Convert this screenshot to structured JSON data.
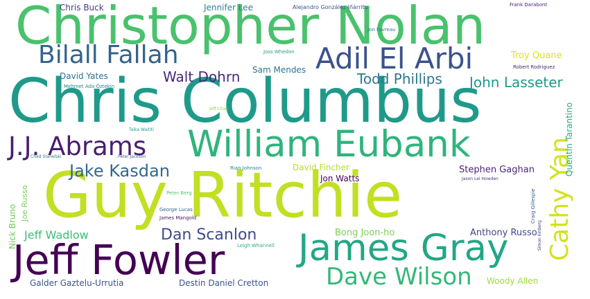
{
  "words": [
    {
      "text": "Guy Ritchie",
      "weight": 100,
      "color": "#c2df23"
    },
    {
      "text": "Chris Columbus",
      "weight": 92,
      "color": "#1f9a8a"
    },
    {
      "text": "Christopher Nolan",
      "weight": 80,
      "color": "#4ac16d"
    },
    {
      "text": "William Eubank",
      "weight": 62,
      "color": "#2fb47c"
    },
    {
      "text": "Jeff Fowler",
      "weight": 60,
      "color": "#440154"
    },
    {
      "text": "James Gray",
      "weight": 57,
      "color": "#22a785"
    },
    {
      "text": "Bilall Fallah",
      "weight": 44,
      "color": "#33638d"
    },
    {
      "text": "Adil El Arbi",
      "weight": 44,
      "color": "#3b528b"
    },
    {
      "text": "J.J. Abrams",
      "weight": 40,
      "color": "#481f70"
    },
    {
      "text": "Cathy Yan",
      "weight": 36,
      "color": "#d2e21b"
    },
    {
      "text": "Dave Wilson",
      "weight": 34,
      "color": "#35b779"
    },
    {
      "text": "Jake Kasdan",
      "weight": 24,
      "color": "#31688e"
    },
    {
      "text": "Dan Scanlon",
      "weight": 22,
      "color": "#3e4a89"
    },
    {
      "text": "John Lasseter",
      "weight": 20,
      "color": "#1f988b"
    },
    {
      "text": "Walt Dohrn",
      "weight": 20,
      "color": "#482878"
    },
    {
      "text": "Todd Phillips",
      "weight": 18,
      "color": "#2a788e"
    },
    {
      "text": "Troy Quane",
      "weight": 13,
      "color": "#dde318"
    },
    {
      "text": "Jeff Wadlow",
      "weight": 16,
      "color": "#3dbc74"
    },
    {
      "text": "Stephen Gaghan",
      "weight": 13,
      "color": "#482475"
    },
    {
      "text": "Anthony Russo",
      "weight": 13,
      "color": "#414487"
    },
    {
      "text": "Bong Joon-ho",
      "weight": 13,
      "color": "#7ad151"
    },
    {
      "text": "David Fincher",
      "weight": 12,
      "color": "#b5de2b"
    },
    {
      "text": "Jon Watts",
      "weight": 12,
      "color": "#440154"
    },
    {
      "text": "Woody Allen",
      "weight": 12,
      "color": "#a0da39"
    },
    {
      "text": "Destin Daniel Cretton",
      "weight": 12,
      "color": "#3b528b"
    },
    {
      "text": "Galder Gaztelu-Urrutia",
      "weight": 12,
      "color": "#3b528b"
    },
    {
      "text": "Chris Buck",
      "weight": 12,
      "color": "#443a83"
    },
    {
      "text": "Jennifer Lee",
      "weight": 12,
      "color": "#26828e"
    },
    {
      "text": "David Yates",
      "weight": 12,
      "color": "#2c728e"
    },
    {
      "text": "Sam Mendes",
      "weight": 12,
      "color": "#2c728e"
    },
    {
      "text": "Quentin Tarantino",
      "weight": 12,
      "color": "#25ab82"
    },
    {
      "text": "Nick Bruno",
      "weight": 12,
      "color": "#6ccd5a"
    },
    {
      "text": "Joe Russo",
      "weight": 11,
      "color": "#75d054"
    },
    {
      "text": "Alejandro González Iñárritu",
      "weight": 8,
      "color": "#3b528b"
    },
    {
      "text": "Frank Darabont",
      "weight": 7,
      "color": "#481a6c"
    },
    {
      "text": "Jon Favreau",
      "weight": 7,
      "color": "#2a788e"
    },
    {
      "text": "Joss Whedon",
      "weight": 7,
      "color": "#1fa088"
    },
    {
      "text": "Robert Rodriguez",
      "weight": 7,
      "color": "#482475"
    },
    {
      "text": "Mehmet Ada Öztekin",
      "weight": 7,
      "color": "#26828e"
    },
    {
      "text": "Jeff Chan",
      "weight": 6,
      "color": "#8bd646"
    },
    {
      "text": "Taika Waititi",
      "weight": 6,
      "color": "#1f968b"
    },
    {
      "text": "Chad Stahelski",
      "weight": 6,
      "color": "#2a788e"
    },
    {
      "text": "Peter Jackson",
      "weight": 6,
      "color": "#33638d"
    },
    {
      "text": "Rian Johnson",
      "weight": 7,
      "color": "#26828e"
    },
    {
      "text": "Jason Lei Howden",
      "weight": 6,
      "color": "#46337e"
    },
    {
      "text": "Peter Berg",
      "weight": 7,
      "color": "#52c569"
    },
    {
      "text": "George Lucas",
      "weight": 7,
      "color": "#365c8d"
    },
    {
      "text": "James Mangold",
      "weight": 7,
      "color": "#471365"
    },
    {
      "text": "Leigh Whannell",
      "weight": 7,
      "color": "#29af7f"
    },
    {
      "text": "Craig Gillespie",
      "weight": 7,
      "color": "#3b528b"
    },
    {
      "text": "Simon Kinberg",
      "weight": 6,
      "color": "#443a83"
    }
  ]
}
